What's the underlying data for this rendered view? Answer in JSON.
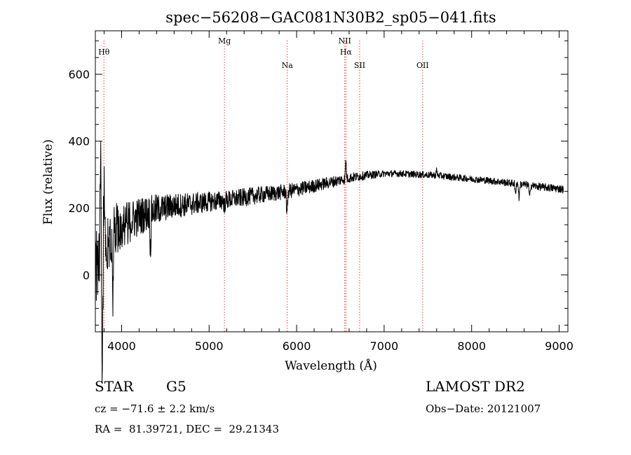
{
  "chart_data": {
    "type": "line",
    "title": "spec−56208−GAC081N30B2_sp05−041.fits",
    "xlabel": "Wavelength (Å)",
    "ylabel": "Flux (relative)",
    "xlim": [
      3700,
      9100
    ],
    "ylim": [
      -170,
      730
    ],
    "xticks": [
      4000,
      5000,
      6000,
      7000,
      8000,
      9000
    ],
    "yticks": [
      0,
      200,
      400,
      600
    ],
    "grid": false,
    "series_color": "#000000",
    "line_color": "#ff0000",
    "continuum": [
      [
        3700,
        30
      ],
      [
        3780,
        60
      ],
      [
        3850,
        110
      ],
      [
        3950,
        140
      ],
      [
        4050,
        155
      ],
      [
        4200,
        175
      ],
      [
        4400,
        195
      ],
      [
        4600,
        207
      ],
      [
        4800,
        212
      ],
      [
        5000,
        219
      ],
      [
        5200,
        224
      ],
      [
        5400,
        232
      ],
      [
        5600,
        240
      ],
      [
        5800,
        246
      ],
      [
        6000,
        255
      ],
      [
        6200,
        266
      ],
      [
        6400,
        278
      ],
      [
        6600,
        290
      ],
      [
        6800,
        298
      ],
      [
        7000,
        303
      ],
      [
        7200,
        303
      ],
      [
        7400,
        300
      ],
      [
        7600,
        298
      ],
      [
        7800,
        292
      ],
      [
        8000,
        287
      ],
      [
        8200,
        282
      ],
      [
        8400,
        276
      ],
      [
        8600,
        270
      ],
      [
        8800,
        263
      ],
      [
        9000,
        258
      ],
      [
        9050,
        256
      ]
    ],
    "features": [
      {
        "x": 5890,
        "depth": 85
      },
      {
        "x": 5175,
        "depth": 25
      },
      {
        "x": 6563,
        "depth": -60
      },
      {
        "x": 8500,
        "depth": 35
      },
      {
        "x": 8542,
        "depth": 45
      },
      {
        "x": 8662,
        "depth": 42
      },
      {
        "x": 7600,
        "depth": -15
      },
      {
        "x": 3780,
        "depth": 380
      },
      {
        "x": 3800,
        "depth": -240
      },
      {
        "x": 3760,
        "depth": -300
      },
      {
        "x": 3900,
        "depth": 190
      },
      {
        "x": 4330,
        "depth": 120
      }
    ],
    "noise_amplitude": [
      [
        3700,
        120
      ],
      [
        4000,
        70
      ],
      [
        4500,
        40
      ],
      [
        5000,
        30
      ],
      [
        6000,
        22
      ],
      [
        7000,
        10
      ],
      [
        8000,
        10
      ],
      [
        9050,
        12
      ]
    ],
    "emission_lines": [
      {
        "name": "Hθ",
        "x": 3798,
        "label_level": 1
      },
      {
        "name": "Mg",
        "x": 5175,
        "label_level": 0
      },
      {
        "name": "Na",
        "x": 5893,
        "label_level": 2
      },
      {
        "name": "NII",
        "x": 6550,
        "label_level": 0
      },
      {
        "name": "Hα",
        "x": 6563,
        "label_level": 1
      },
      {
        "name": "SII",
        "x": 6720,
        "label_level": 2
      },
      {
        "name": "OII",
        "x": 7440,
        "label_level": 2
      }
    ]
  },
  "info": {
    "object_class": "STAR",
    "subclass": "G5",
    "survey": "LAMOST DR2",
    "redshift": "cz = −71.6 ± 2.2 km/s",
    "obs_date": "Obs−Date: 20121007",
    "coords": "RA =  81.39721, DEC =  29.21343"
  }
}
